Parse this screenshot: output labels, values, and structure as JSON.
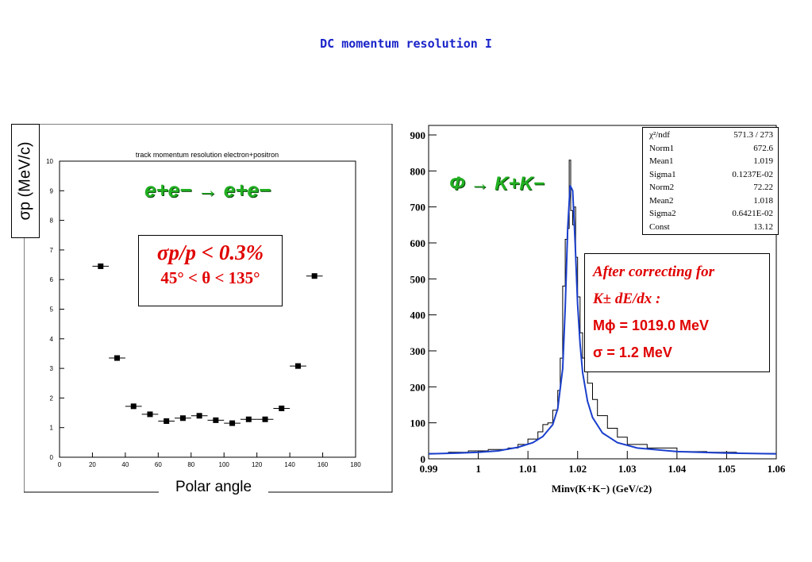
{
  "slide_title": "DC momentum resolution I",
  "left_panel": {
    "ylabel": "σp (MeV/c)",
    "xlabel": "Polar angle",
    "inner_title": "track momentum resolution electron+positron",
    "process_label": "e+e− → e+e−",
    "resolution_box": {
      "line1": "σp/p < 0.3%",
      "line2": "45° < θ < 135°"
    },
    "text_color": "#e00000",
    "process_color": "#22b022"
  },
  "right_panel": {
    "process_label": "Φ → K+K−",
    "xlabel": "Minv(K+K−) (GeV/c2)",
    "fit_color": "#1a3fcc",
    "stats": [
      {
        "key": "χ²/ndf",
        "value": "571.3  /  273"
      },
      {
        "key": "Norm1",
        "value": "672.6"
      },
      {
        "key": "Mean1",
        "value": "1.019"
      },
      {
        "key": "Sigma1",
        "value": "0.1237E-02"
      },
      {
        "key": "Norm2",
        "value": "72.22"
      },
      {
        "key": "Mean2",
        "value": "1.018"
      },
      {
        "key": "Sigma2",
        "value": "0.6421E-02"
      },
      {
        "key": "Const",
        "value": "13.12"
      }
    ],
    "note": {
      "line1": "After correcting for",
      "line2": "K± dE/dx :",
      "line3": "Mϕ  = 1019.0 MeV",
      "line4": "σ = 1.2 MeV"
    }
  },
  "chart_data": [
    {
      "type": "scatter",
      "title": "track momentum resolution electron+positron",
      "xlabel": "Polar angle",
      "ylabel": "σp (MeV/c)",
      "xlim": [
        0,
        180
      ],
      "ylim": [
        0,
        10
      ],
      "xticks": [
        0,
        20,
        40,
        60,
        80,
        100,
        120,
        140,
        160,
        180
      ],
      "yticks": [
        0,
        1,
        2,
        3,
        4,
        5,
        6,
        7,
        8,
        9,
        10
      ],
      "x_error": 5,
      "points": [
        {
          "x": 25,
          "y": 6.45
        },
        {
          "x": 35,
          "y": 3.35
        },
        {
          "x": 45,
          "y": 1.72
        },
        {
          "x": 55,
          "y": 1.45
        },
        {
          "x": 65,
          "y": 1.22
        },
        {
          "x": 75,
          "y": 1.32
        },
        {
          "x": 85,
          "y": 1.4
        },
        {
          "x": 95,
          "y": 1.25
        },
        {
          "x": 105,
          "y": 1.15
        },
        {
          "x": 115,
          "y": 1.28
        },
        {
          "x": 125,
          "y": 1.28
        },
        {
          "x": 135,
          "y": 1.65
        },
        {
          "x": 145,
          "y": 3.08
        },
        {
          "x": 155,
          "y": 6.12
        }
      ]
    },
    {
      "type": "line",
      "xlabel": "Minv(K+K−) (GeV/c2)",
      "xlim": [
        0.99,
        1.06
      ],
      "ylim": [
        0,
        900
      ],
      "xticks": [
        0.99,
        1,
        1.01,
        1.02,
        1.03,
        1.04,
        1.05,
        1.06
      ],
      "xtick_labels": [
        "0.99",
        "1",
        "1.01",
        "1.02",
        "1.03",
        "1.04",
        "1.05",
        "1.06"
      ],
      "yticks": [
        0,
        100,
        200,
        300,
        400,
        500,
        600,
        700,
        800,
        900
      ],
      "series": [
        {
          "color": "#000000",
          "x": [
            0.99,
            0.994,
            0.998,
            1.002,
            1.006,
            1.008,
            1.01,
            1.012,
            1.013,
            1.014,
            1.015,
            1.016,
            1.0165,
            1.017,
            1.0175,
            1.018,
            1.0183,
            1.0186,
            1.019,
            1.0193,
            1.0196,
            1.02,
            1.0205,
            1.021,
            1.022,
            1.023,
            1.024,
            1.026,
            1.028,
            1.03,
            1.034,
            1.04,
            1.046,
            1.052,
            1.06
          ],
          "y": [
            15,
            18,
            22,
            26,
            30,
            40,
            55,
            75,
            95,
            100,
            135,
            190,
            280,
            480,
            610,
            640,
            830,
            690,
            650,
            700,
            560,
            450,
            350,
            280,
            210,
            165,
            120,
            85,
            60,
            40,
            30,
            20,
            18,
            15,
            15
          ]
        },
        {
          "color": "#1a3fcc",
          "x": [
            0.99,
            0.996,
            1.0,
            1.004,
            1.008,
            1.011,
            1.013,
            1.015,
            1.016,
            1.017,
            1.0175,
            1.018,
            1.0185,
            1.019,
            1.0195,
            1.02,
            1.0205,
            1.021,
            1.022,
            1.023,
            1.025,
            1.028,
            1.032,
            1.04,
            1.05,
            1.06
          ],
          "y": [
            14,
            16,
            18,
            22,
            32,
            45,
            62,
            95,
            140,
            250,
            420,
            640,
            760,
            745,
            600,
            430,
            320,
            240,
            160,
            115,
            72,
            45,
            30,
            20,
            16,
            14
          ]
        }
      ]
    }
  ]
}
